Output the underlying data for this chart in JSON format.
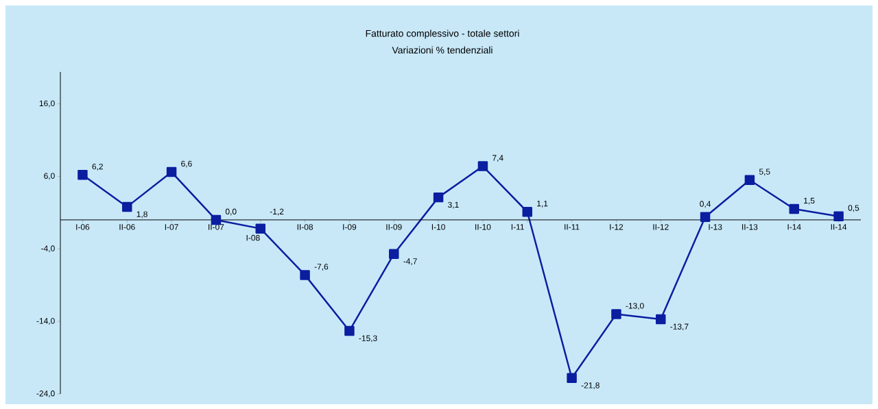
{
  "chart_data": {
    "type": "line",
    "title": "Fatturato complessivo - totale settori",
    "subtitle": "Variazioni % tendenziali",
    "categories": [
      "I-06",
      "II-06",
      "I-07",
      "II-07",
      "I-08",
      "II-08",
      "I-09",
      "II-09",
      "I-10",
      "II-10",
      "I-11",
      "II-11",
      "I-12",
      "II-12",
      "I-13",
      "II-13",
      "I-14",
      "II-14"
    ],
    "series": [
      {
        "color": "#0b1ea0",
        "values": [
          6.2,
          1.8,
          6.6,
          0.0,
          -1.2,
          -7.6,
          -15.3,
          -4.7,
          3.1,
          7.4,
          1.1,
          -21.8,
          -13.0,
          -13.7,
          0.4,
          5.5,
          1.5,
          0.5
        ],
        "value_labels": [
          "6,2",
          "1,8",
          "6,6",
          "0,0",
          "-1,2",
          "-7,6",
          "-15,3",
          "-4,7",
          "3,1",
          "7,4",
          "1,1",
          "-21,8",
          "-13,0",
          "-13,7",
          "0,4",
          "5,5",
          "1,5",
          "0,5"
        ]
      }
    ],
    "ylim": [
      -24,
      20.4
    ],
    "yticks": [
      {
        "value": -24,
        "label": "-24,0"
      },
      {
        "value": -14,
        "label": "-14,0"
      },
      {
        "value": -4,
        "label": "-4,0"
      },
      {
        "value": 6,
        "label": "6,0"
      },
      {
        "value": 16,
        "label": "16,0"
      }
    ],
    "marker": "square",
    "line_style": "solid",
    "grid": false
  }
}
